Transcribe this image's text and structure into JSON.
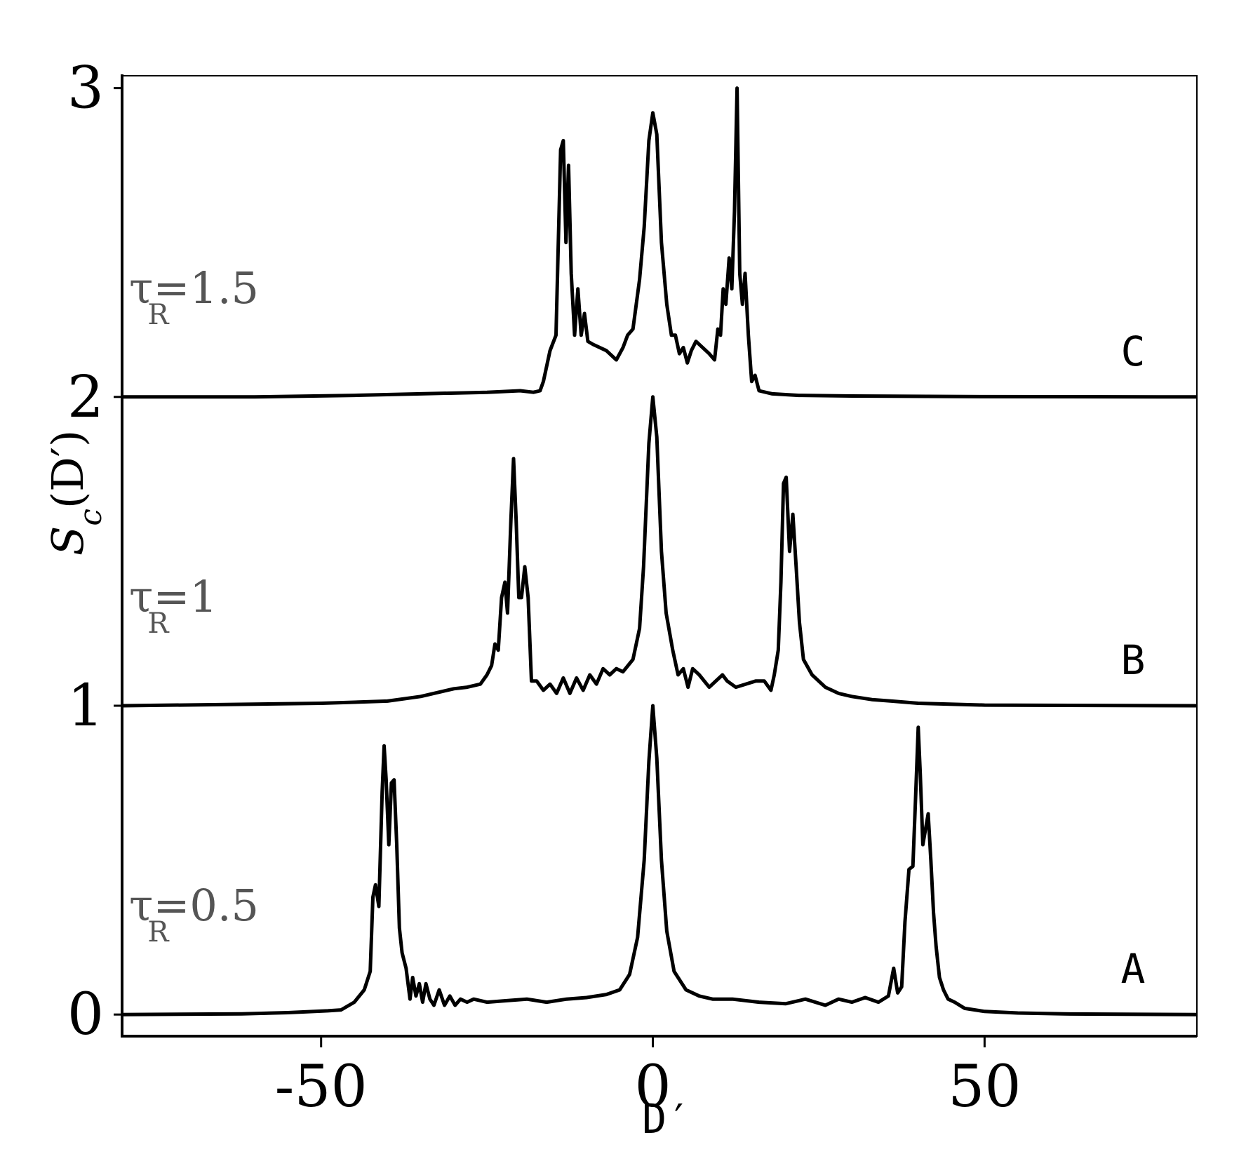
{
  "chart_data": {
    "type": "line",
    "title": "",
    "xlabel": "D′",
    "ylabel": "S_c(D′)",
    "ylabel_main": "S",
    "ylabel_sub": "c",
    "ylabel_rest": "(D′)",
    "xlim": [
      -80,
      82
    ],
    "ylim": [
      -0.07,
      3.04
    ],
    "xticks": [
      -50,
      0,
      50
    ],
    "xtick_labels": [
      "-50",
      "0",
      "50"
    ],
    "yticks": [
      0,
      1,
      2,
      3
    ],
    "ytick_labels": [
      "0",
      "1",
      "2",
      "3"
    ],
    "grid": false,
    "series": [
      {
        "name": "A",
        "letter": "A",
        "tau_text": "τ",
        "tau_sub": "R",
        "tau_value": "=0.5",
        "offset": 0,
        "points": [
          [
            -80,
            0
          ],
          [
            -62,
            0.002
          ],
          [
            -55,
            0.006
          ],
          [
            -49,
            0.012
          ],
          [
            -47,
            0.015
          ],
          [
            -45,
            0.04
          ],
          [
            -43.5,
            0.08
          ],
          [
            -42.6,
            0.14
          ],
          [
            -42.2,
            0.38
          ],
          [
            -41.8,
            0.42
          ],
          [
            -41.3,
            0.35
          ],
          [
            -40.8,
            0.72
          ],
          [
            -40.5,
            0.87
          ],
          [
            -40.2,
            0.76
          ],
          [
            -39.8,
            0.55
          ],
          [
            -39.4,
            0.75
          ],
          [
            -39,
            0.76
          ],
          [
            -38.6,
            0.55
          ],
          [
            -38.2,
            0.28
          ],
          [
            -37.8,
            0.2
          ],
          [
            -37.2,
            0.15
          ],
          [
            -36.6,
            0.05
          ],
          [
            -36.2,
            0.12
          ],
          [
            -35.7,
            0.06
          ],
          [
            -35.2,
            0.1
          ],
          [
            -34.7,
            0.04
          ],
          [
            -34.2,
            0.1
          ],
          [
            -33.6,
            0.05
          ],
          [
            -33,
            0.03
          ],
          [
            -32.2,
            0.08
          ],
          [
            -31.4,
            0.03
          ],
          [
            -30.6,
            0.06
          ],
          [
            -29.8,
            0.03
          ],
          [
            -29,
            0.05
          ],
          [
            -28,
            0.04
          ],
          [
            -27,
            0.05
          ],
          [
            -25,
            0.04
          ],
          [
            -22,
            0.045
          ],
          [
            -19,
            0.05
          ],
          [
            -16,
            0.04
          ],
          [
            -13,
            0.05
          ],
          [
            -10,
            0.055
          ],
          [
            -7,
            0.065
          ],
          [
            -5,
            0.08
          ],
          [
            -3.5,
            0.13
          ],
          [
            -2.3,
            0.25
          ],
          [
            -1.3,
            0.5
          ],
          [
            -0.6,
            0.82
          ],
          [
            0,
            1.0
          ],
          [
            0.6,
            0.83
          ],
          [
            1.3,
            0.5
          ],
          [
            2.1,
            0.27
          ],
          [
            3.2,
            0.14
          ],
          [
            5,
            0.08
          ],
          [
            7,
            0.06
          ],
          [
            9,
            0.05
          ],
          [
            12,
            0.05
          ],
          [
            16,
            0.04
          ],
          [
            20,
            0.035
          ],
          [
            23,
            0.05
          ],
          [
            26,
            0.03
          ],
          [
            28,
            0.05
          ],
          [
            30,
            0.04
          ],
          [
            32,
            0.055
          ],
          [
            34,
            0.04
          ],
          [
            35.5,
            0.06
          ],
          [
            36.3,
            0.15
          ],
          [
            36.9,
            0.07
          ],
          [
            37.5,
            0.09
          ],
          [
            38,
            0.3
          ],
          [
            38.6,
            0.47
          ],
          [
            39.2,
            0.48
          ],
          [
            39.6,
            0.7
          ],
          [
            40,
            0.93
          ],
          [
            40.3,
            0.78
          ],
          [
            40.7,
            0.55
          ],
          [
            41.1,
            0.6
          ],
          [
            41.5,
            0.65
          ],
          [
            41.9,
            0.5
          ],
          [
            42.3,
            0.33
          ],
          [
            42.7,
            0.22
          ],
          [
            43.2,
            0.12
          ],
          [
            43.8,
            0.08
          ],
          [
            44.5,
            0.05
          ],
          [
            45.5,
            0.04
          ],
          [
            47,
            0.02
          ],
          [
            50,
            0.01
          ],
          [
            55,
            0.005
          ],
          [
            62,
            0.002
          ],
          [
            82,
            0
          ]
        ]
      },
      {
        "name": "B",
        "letter": "B",
        "tau_text": "τ",
        "tau_sub": "R",
        "tau_value": "=1",
        "offset": 1,
        "points": [
          [
            -80,
            0
          ],
          [
            -60,
            0.005
          ],
          [
            -50,
            0.008
          ],
          [
            -40,
            0.015
          ],
          [
            -35,
            0.03
          ],
          [
            -30,
            0.055
          ],
          [
            -28,
            0.06
          ],
          [
            -26,
            0.07
          ],
          [
            -25,
            0.1
          ],
          [
            -24.3,
            0.13
          ],
          [
            -23.8,
            0.2
          ],
          [
            -23.3,
            0.18
          ],
          [
            -22.8,
            0.35
          ],
          [
            -22.3,
            0.4
          ],
          [
            -21.9,
            0.3
          ],
          [
            -21.4,
            0.6
          ],
          [
            -21,
            0.8
          ],
          [
            -20.6,
            0.6
          ],
          [
            -20.2,
            0.35
          ],
          [
            -19.8,
            0.35
          ],
          [
            -19.3,
            0.45
          ],
          [
            -18.8,
            0.35
          ],
          [
            -18.3,
            0.08
          ],
          [
            -17.5,
            0.08
          ],
          [
            -16.5,
            0.05
          ],
          [
            -15.5,
            0.07
          ],
          [
            -14.5,
            0.04
          ],
          [
            -13.5,
            0.09
          ],
          [
            -12.5,
            0.04
          ],
          [
            -11.5,
            0.09
          ],
          [
            -10.5,
            0.05
          ],
          [
            -9.5,
            0.1
          ],
          [
            -8.5,
            0.07
          ],
          [
            -7.5,
            0.12
          ],
          [
            -6.5,
            0.1
          ],
          [
            -5.5,
            0.12
          ],
          [
            -4.5,
            0.11
          ],
          [
            -3,
            0.15
          ],
          [
            -2,
            0.25
          ],
          [
            -1.4,
            0.45
          ],
          [
            -0.6,
            0.85
          ],
          [
            0,
            1.0
          ],
          [
            0.6,
            0.87
          ],
          [
            1.3,
            0.5
          ],
          [
            2,
            0.3
          ],
          [
            3,
            0.18
          ],
          [
            3.8,
            0.1
          ],
          [
            4.6,
            0.12
          ],
          [
            5.3,
            0.06
          ],
          [
            6,
            0.12
          ],
          [
            7,
            0.1
          ],
          [
            8.5,
            0.06
          ],
          [
            10.5,
            0.1
          ],
          [
            11.2,
            0.08
          ],
          [
            12.5,
            0.06
          ],
          [
            14,
            0.07
          ],
          [
            15.5,
            0.08
          ],
          [
            16.8,
            0.08
          ],
          [
            17.8,
            0.05
          ],
          [
            18.3,
            0.1
          ],
          [
            18.9,
            0.18
          ],
          [
            19.3,
            0.4
          ],
          [
            19.7,
            0.72
          ],
          [
            20.1,
            0.74
          ],
          [
            20.6,
            0.5
          ],
          [
            21.1,
            0.62
          ],
          [
            21.6,
            0.45
          ],
          [
            22.1,
            0.27
          ],
          [
            22.7,
            0.15
          ],
          [
            24,
            0.1
          ],
          [
            26,
            0.06
          ],
          [
            28,
            0.04
          ],
          [
            30,
            0.03
          ],
          [
            33,
            0.02
          ],
          [
            36,
            0.015
          ],
          [
            40,
            0.008
          ],
          [
            50,
            0.002
          ],
          [
            82,
            0
          ]
        ]
      },
      {
        "name": "C",
        "letter": "C",
        "tau_text": "τ",
        "tau_sub": "R",
        "tau_value": "=1.5",
        "offset": 2,
        "points": [
          [
            -80,
            0
          ],
          [
            -60,
            0
          ],
          [
            -45,
            0.005
          ],
          [
            -35,
            0.01
          ],
          [
            -25,
            0.015
          ],
          [
            -20,
            0.02
          ],
          [
            -18,
            0.015
          ],
          [
            -17,
            0.02
          ],
          [
            -16.5,
            0.05
          ],
          [
            -15.5,
            0.15
          ],
          [
            -14.6,
            0.2
          ],
          [
            -13.9,
            0.8
          ],
          [
            -13.5,
            0.83
          ],
          [
            -13.1,
            0.5
          ],
          [
            -12.7,
            0.75
          ],
          [
            -12.3,
            0.4
          ],
          [
            -11.8,
            0.2
          ],
          [
            -11.3,
            0.35
          ],
          [
            -10.8,
            0.2
          ],
          [
            -10.3,
            0.27
          ],
          [
            -9.8,
            0.18
          ],
          [
            -9,
            0.17
          ],
          [
            -7,
            0.15
          ],
          [
            -5.5,
            0.12
          ],
          [
            -4.5,
            0.16
          ],
          [
            -3.8,
            0.2
          ],
          [
            -3,
            0.22
          ],
          [
            -2,
            0.38
          ],
          [
            -1.3,
            0.55
          ],
          [
            -0.6,
            0.83
          ],
          [
            0,
            0.92
          ],
          [
            0.6,
            0.85
          ],
          [
            1.3,
            0.5
          ],
          [
            2.1,
            0.3
          ],
          [
            2.8,
            0.2
          ],
          [
            3.4,
            0.2
          ],
          [
            4,
            0.14
          ],
          [
            4.6,
            0.16
          ],
          [
            5.2,
            0.11
          ],
          [
            5.8,
            0.15
          ],
          [
            6.5,
            0.18
          ],
          [
            7.5,
            0.16
          ],
          [
            8.5,
            0.14
          ],
          [
            9.3,
            0.12
          ],
          [
            9.8,
            0.22
          ],
          [
            10.2,
            0.2
          ],
          [
            10.6,
            0.35
          ],
          [
            11,
            0.3
          ],
          [
            11.5,
            0.45
          ],
          [
            11.9,
            0.35
          ],
          [
            12.3,
            0.6
          ],
          [
            12.7,
            1.0
          ],
          [
            13.1,
            0.4
          ],
          [
            13.5,
            0.3
          ],
          [
            13.9,
            0.4
          ],
          [
            14.4,
            0.2
          ],
          [
            14.9,
            0.05
          ],
          [
            15.4,
            0.07
          ],
          [
            16,
            0.02
          ],
          [
            18,
            0.01
          ],
          [
            22,
            0.005
          ],
          [
            30,
            0.003
          ],
          [
            50,
            0.001
          ],
          [
            82,
            0
          ]
        ]
      }
    ]
  }
}
